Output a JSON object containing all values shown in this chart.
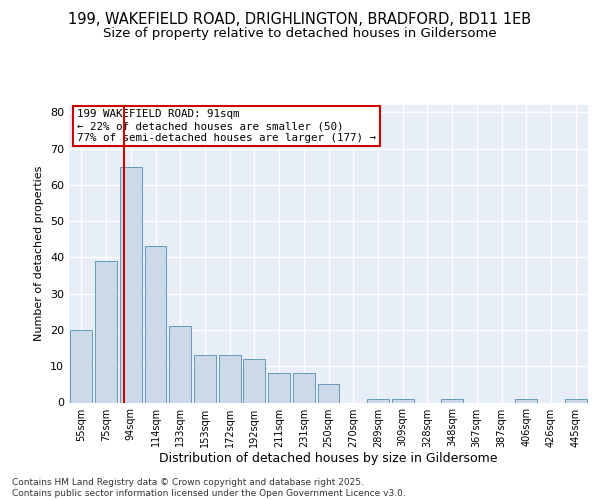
{
  "title_line1": "199, WAKEFIELD ROAD, DRIGHLINGTON, BRADFORD, BD11 1EB",
  "title_line2": "Size of property relative to detached houses in Gildersome",
  "xlabel": "Distribution of detached houses by size in Gildersome",
  "ylabel": "Number of detached properties",
  "categories": [
    "55sqm",
    "75sqm",
    "94sqm",
    "114sqm",
    "133sqm",
    "153sqm",
    "172sqm",
    "192sqm",
    "211sqm",
    "231sqm",
    "250sqm",
    "270sqm",
    "289sqm",
    "309sqm",
    "328sqm",
    "348sqm",
    "367sqm",
    "387sqm",
    "406sqm",
    "426sqm",
    "445sqm"
  ],
  "values": [
    20,
    39,
    65,
    43,
    21,
    13,
    13,
    12,
    8,
    8,
    5,
    0,
    1,
    1,
    0,
    1,
    0,
    0,
    1,
    0,
    1
  ],
  "bar_color": "#ccd9e8",
  "bar_edge_color": "#6699bb",
  "vline_x": 1.72,
  "vline_color": "#cc0000",
  "annotation_text": "199 WAKEFIELD ROAD: 91sqm\n← 22% of detached houses are smaller (50)\n77% of semi-detached houses are larger (177) →",
  "annotation_box_color": "#ffffff",
  "annotation_box_edge": "#cc0000",
  "ylim": [
    0,
    82
  ],
  "yticks": [
    0,
    10,
    20,
    30,
    40,
    50,
    60,
    70,
    80
  ],
  "background_color": "#ffffff",
  "plot_bg_color": "#e8eef8",
  "grid_color": "#ffffff",
  "title_fontsize": 10.5,
  "subtitle_fontsize": 9.5,
  "footnote": "Contains HM Land Registry data © Crown copyright and database right 2025.\nContains public sector information licensed under the Open Government Licence v3.0."
}
